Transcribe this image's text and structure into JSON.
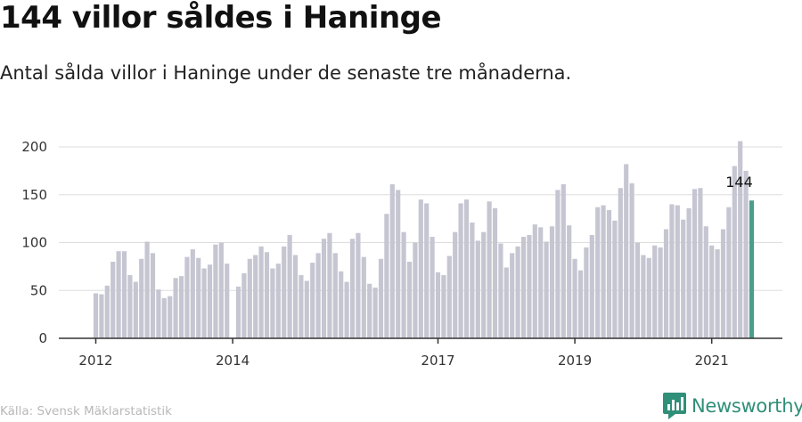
{
  "header": {
    "title": "144 villor såldes i Haninge",
    "subtitle": "Antal sålda villor i Haninge under de senaste tre månaderna."
  },
  "footer": {
    "source": "Källa: Svensk Mäklarstatistik",
    "brand": "Newsworthy"
  },
  "colors": {
    "bar": "#c6c6d2",
    "highlight": "#4b9e8c",
    "grid": "#dddddd",
    "axis": "#333333",
    "brand": "#2f8f78"
  },
  "chart_data": {
    "type": "bar",
    "ylim": [
      0,
      210
    ],
    "yticks": [
      0,
      50,
      100,
      150,
      200
    ],
    "xticks": [
      {
        "label": "2012",
        "index": 0
      },
      {
        "label": "2014",
        "index": 24
      },
      {
        "label": "2017",
        "index": 60
      },
      {
        "label": "2019",
        "index": 84
      },
      {
        "label": "2021",
        "index": 108
      }
    ],
    "values": [
      47,
      46,
      55,
      80,
      91,
      91,
      66,
      59,
      83,
      101,
      89,
      51,
      42,
      44,
      63,
      65,
      85,
      93,
      84,
      73,
      77,
      98,
      100,
      78,
      null,
      54,
      68,
      83,
      87,
      96,
      90,
      73,
      78,
      96,
      108,
      87,
      66,
      60,
      79,
      89,
      104,
      110,
      89,
      70,
      59,
      104,
      110,
      85,
      57,
      53,
      83,
      130,
      161,
      155,
      111,
      80,
      100,
      145,
      141,
      106,
      69,
      66,
      86,
      111,
      141,
      145,
      121,
      102,
      111,
      143,
      136,
      99,
      74,
      89,
      96,
      106,
      108,
      119,
      116,
      101,
      117,
      155,
      161,
      118,
      83,
      71,
      95,
      108,
      137,
      139,
      134,
      123,
      157,
      182,
      162,
      100,
      87,
      84,
      97,
      95,
      114,
      140,
      139,
      124,
      136,
      156,
      157,
      117,
      97,
      93,
      114,
      137,
      180,
      206,
      175,
      144
    ],
    "highlight_index": 115,
    "highlight_label": "144"
  }
}
